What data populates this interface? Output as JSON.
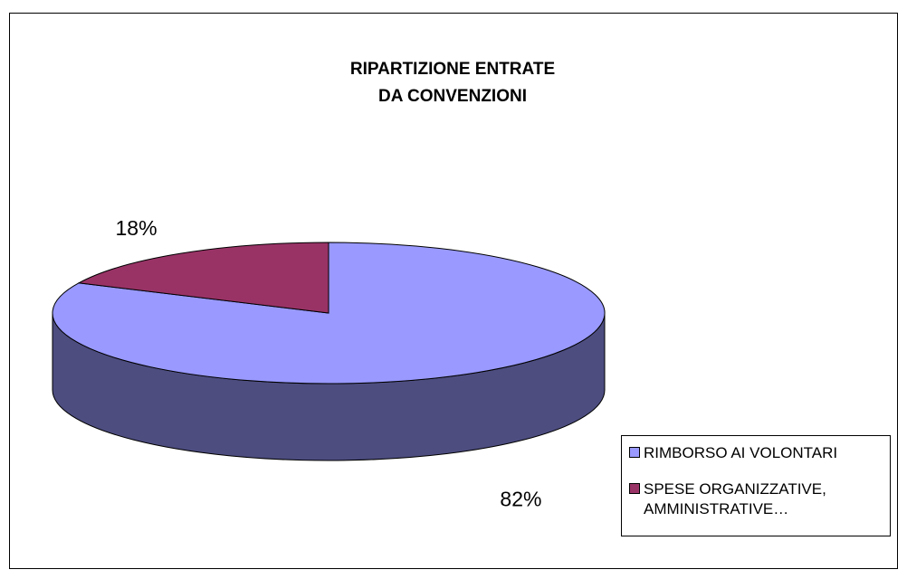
{
  "chart_data": {
    "type": "pie",
    "title": "RIPARTIZIONE ENTRATE\nDA CONVENZIONI",
    "categories": [
      "RIMBORSO AI VOLONTARI",
      "SPESE ORGANIZZATIVE, AMMINISTRATIVE…"
    ],
    "values": [
      82,
      18
    ],
    "value_labels": [
      "82%",
      "18%"
    ],
    "colors": [
      "#9999ff",
      "#993366"
    ],
    "legend": "bottom-right"
  }
}
